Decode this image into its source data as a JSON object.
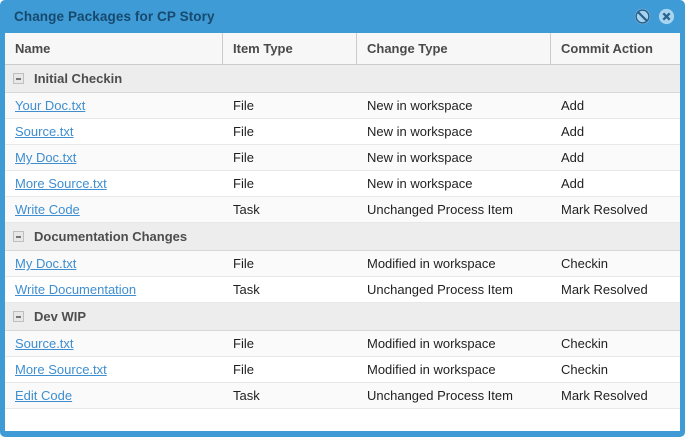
{
  "dialog": {
    "title": "Change Packages for CP Story",
    "titlebar_icons": [
      "no-entry-icon",
      "close-icon"
    ]
  },
  "table": {
    "columns": [
      "Name",
      "Item Type",
      "Change Type",
      "Commit Action"
    ],
    "groups": [
      {
        "label": "Initial Checkin",
        "rows": [
          {
            "name": "Your Doc.txt",
            "item_type": "File",
            "change_type": "New in workspace",
            "commit_action": "Add"
          },
          {
            "name": "Source.txt",
            "item_type": "File",
            "change_type": "New in workspace",
            "commit_action": "Add"
          },
          {
            "name": "My Doc.txt",
            "item_type": "File",
            "change_type": "New in workspace",
            "commit_action": "Add"
          },
          {
            "name": "More Source.txt",
            "item_type": "File",
            "change_type": "New in workspace",
            "commit_action": "Add"
          },
          {
            "name": "Write Code",
            "item_type": "Task",
            "change_type": "Unchanged Process Item",
            "commit_action": "Mark Resolved"
          }
        ]
      },
      {
        "label": "Documentation Changes",
        "rows": [
          {
            "name": "My Doc.txt",
            "item_type": "File",
            "change_type": "Modified in workspace",
            "commit_action": "Checkin"
          },
          {
            "name": "Write Documentation",
            "item_type": "Task",
            "change_type": "Unchanged Process Item",
            "commit_action": "Mark Resolved"
          }
        ]
      },
      {
        "label": "Dev WIP",
        "rows": [
          {
            "name": "Source.txt",
            "item_type": "File",
            "change_type": "Modified in workspace",
            "commit_action": "Checkin"
          },
          {
            "name": "More Source.txt",
            "item_type": "File",
            "change_type": "Modified in workspace",
            "commit_action": "Checkin"
          },
          {
            "name": "Edit Code",
            "item_type": "Task",
            "change_type": "Unchanged Process Item",
            "commit_action": "Mark Resolved"
          }
        ]
      }
    ]
  },
  "colors": {
    "accent_blue": "#3E9BD6",
    "title_text": "#17496E",
    "link": "#3E8ED0",
    "header_bg": "#F7F7F7",
    "group_bg": "#EDEDED",
    "icon_circle": "#A8D4F0",
    "icon_glyph": "#2A628F"
  }
}
